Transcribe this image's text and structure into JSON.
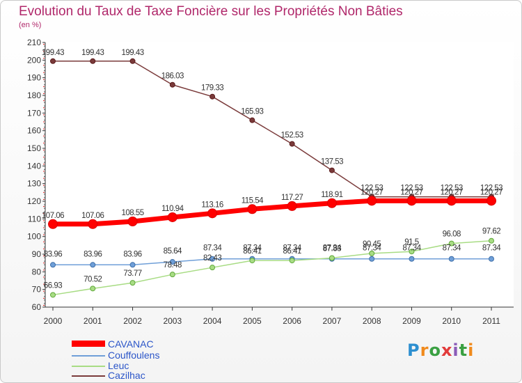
{
  "header": {
    "title": "Evolution du Taux de Taxe Foncière sur les Propriétés Non Bâties",
    "unit": "(en %)"
  },
  "chart_data": {
    "type": "line",
    "title": "Evolution du Taux de Taxe Foncière sur les Propriétés Non Bâties",
    "ylabel": "(en %)",
    "xlabel": "",
    "ylim": [
      60,
      210
    ],
    "y_ticks": [
      60,
      70,
      80,
      90,
      100,
      110,
      120,
      130,
      140,
      150,
      160,
      170,
      180,
      190,
      200,
      210
    ],
    "grid": false,
    "legend_position": "bottom-left",
    "categories": [
      "2000",
      "2001",
      "2002",
      "2003",
      "2004",
      "2005",
      "2006",
      "2007",
      "2008",
      "2009",
      "2010",
      "2011"
    ],
    "series": [
      {
        "name": "CAVANAC",
        "color": "#ff0000",
        "values": [
          107.06,
          107.06,
          108.55,
          110.94,
          113.16,
          115.54,
          117.27,
          118.91,
          120.27,
          120.27,
          120.27,
          120.27
        ],
        "labels": [
          "107.06",
          "107.06",
          "108.55",
          "110.94",
          "113.16",
          "115.54",
          "117.27",
          "118.91",
          "120.27",
          "120.27",
          "120.27",
          "120.27"
        ]
      },
      {
        "name": "Couffoulens",
        "color": "#6f9fd8",
        "values": [
          83.96,
          83.96,
          83.96,
          85.64,
          87.34,
          87.34,
          87.34,
          87.34,
          87.34,
          87.34,
          87.34,
          87.34
        ],
        "labels": [
          "83.96",
          "83.96",
          "83.96",
          "85.64",
          "87.34",
          "87.34",
          "87.34",
          "87.34",
          "87.34",
          "87.34",
          "87.34",
          "87.34"
        ]
      },
      {
        "name": "Leuc",
        "color": "#a8dc84",
        "values": [
          66.93,
          70.52,
          73.77,
          78.48,
          82.43,
          86.41,
          86.41,
          87.83,
          90.45,
          91.5,
          96.08,
          97.62
        ],
        "labels": [
          "66.93",
          "70.52",
          "73.77",
          "78.48",
          "82.43",
          "86.41",
          "86.41",
          "87.83",
          "90.45",
          "91.5",
          "96.08",
          "97.62"
        ]
      },
      {
        "name": "Cazilhac",
        "color": "#7a3a3a",
        "values": [
          199.43,
          199.43,
          199.43,
          186.03,
          179.33,
          165.93,
          152.53,
          137.53,
          122.53,
          122.53,
          122.53,
          122.53
        ],
        "labels": [
          "199.43",
          "199.43",
          "199.43",
          "186.03",
          "179.33",
          "165.93",
          "152.53",
          "137.53",
          "122.53",
          "122.53",
          "122.53",
          "122.53"
        ]
      }
    ]
  },
  "legend": {
    "items": [
      {
        "label": "CAVANAC",
        "color": "#ff0000"
      },
      {
        "label": "Couffoulens",
        "color": "#6f9fd8"
      },
      {
        "label": "Leuc",
        "color": "#a8dc84"
      },
      {
        "label": "Cazilhac",
        "color": "#7a3a3a"
      }
    ]
  },
  "logo": {
    "text": "Proxiti"
  }
}
